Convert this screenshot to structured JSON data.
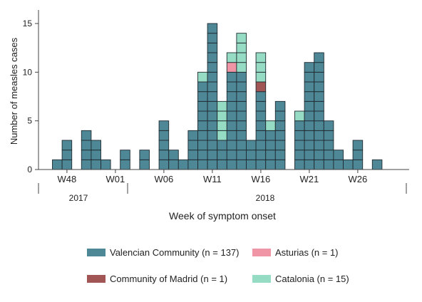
{
  "chart_data": {
    "type": "bar",
    "stacked": true,
    "unit_cells": true,
    "ylabel": "Number of measles cases",
    "xlabel": "Week of symptom onset",
    "ylim": [
      0,
      16
    ],
    "y_ticks": [
      0,
      5,
      10,
      15
    ],
    "x_tick_labels": [
      {
        "label": "W48",
        "index": 1
      },
      {
        "label": "W01",
        "index": 6
      },
      {
        "label": "W06",
        "index": 11
      },
      {
        "label": "W11",
        "index": 16
      },
      {
        "label": "W16",
        "index": 21
      },
      {
        "label": "W21",
        "index": 26
      },
      {
        "label": "W26",
        "index": 31
      }
    ],
    "years": [
      {
        "label": "2017",
        "from_index": 0,
        "to_index": 5
      },
      {
        "label": "2018",
        "from_index": 6,
        "to_index": 35
      }
    ],
    "categories": [
      "W47",
      "W48",
      "W49",
      "W50",
      "W51",
      "W52",
      "W01",
      "W02",
      "W03",
      "W04",
      "W05",
      "W06",
      "W07",
      "W08",
      "W09",
      "W10",
      "W11",
      "W12",
      "W13",
      "W14",
      "W15",
      "W16",
      "W17",
      "W18",
      "W19",
      "W20",
      "W21",
      "W22",
      "W23",
      "W24",
      "W25",
      "W26",
      "W27",
      "W28",
      "W29",
      "W30"
    ],
    "series": [
      {
        "name": "Valencian Community (n = 137)",
        "color": "#4e8796",
        "values": [
          1,
          3,
          0,
          4,
          3,
          1,
          0,
          2,
          0,
          2,
          0,
          5,
          2,
          1,
          4,
          9,
          15,
          3,
          10,
          10,
          3,
          8,
          4,
          7,
          0,
          5,
          11,
          12,
          5,
          2,
          1,
          3,
          0,
          1,
          0,
          0
        ]
      },
      {
        "name": "Community of Madrid (n = 1)",
        "color": "#a15655",
        "values": [
          0,
          0,
          0,
          0,
          0,
          0,
          0,
          0,
          0,
          0,
          0,
          0,
          0,
          0,
          0,
          0,
          0,
          0,
          0,
          0,
          0,
          1,
          0,
          0,
          0,
          0,
          0,
          0,
          0,
          0,
          0,
          0,
          0,
          0,
          0,
          0
        ]
      },
      {
        "name": "Asturias (n = 1)",
        "color": "#f095a6",
        "values": [
          0,
          0,
          0,
          0,
          0,
          0,
          0,
          0,
          0,
          0,
          0,
          0,
          0,
          0,
          0,
          0,
          0,
          0,
          1,
          0,
          0,
          0,
          0,
          0,
          0,
          0,
          0,
          0,
          0,
          0,
          0,
          0,
          0,
          0,
          0,
          0
        ]
      },
      {
        "name": "Catalonia (n = 15)",
        "color": "#96dcc4",
        "values": [
          0,
          0,
          0,
          0,
          0,
          0,
          0,
          0,
          0,
          0,
          0,
          0,
          0,
          0,
          0,
          1,
          0,
          4,
          1,
          4,
          0,
          3,
          1,
          0,
          0,
          1,
          0,
          0,
          0,
          0,
          0,
          0,
          0,
          0,
          0,
          0
        ]
      }
    ],
    "legend": {
      "placement": "bottom",
      "order": [
        0,
        2,
        1,
        3
      ]
    },
    "grid": false,
    "cell_border_color": "#1f2b30",
    "axis_color": "#444444"
  }
}
